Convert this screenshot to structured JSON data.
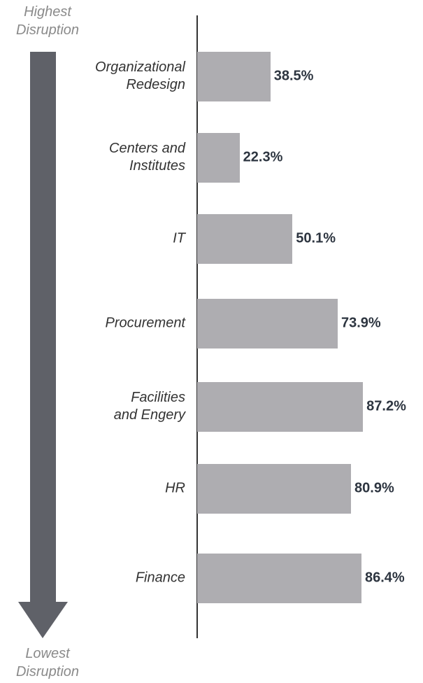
{
  "chart_data": {
    "type": "bar",
    "orientation": "horizontal",
    "annotations": {
      "top": "Highest\nDisruption",
      "bottom": "Lowest\nDisruption"
    },
    "categories": [
      "Organizational\nRedesign",
      "Centers and\nInstitutes",
      "IT",
      "Procurement",
      "Facilities\nand Engery",
      "HR",
      "Finance"
    ],
    "values": [
      38.5,
      22.3,
      50.1,
      73.9,
      87.2,
      80.9,
      86.4
    ],
    "value_labels": [
      "38.5%",
      "22.3%",
      "50.1%",
      "73.9%",
      "87.2%",
      "80.9%",
      "86.4%"
    ],
    "color": "#aeadb1",
    "xlim": [
      0,
      100
    ]
  }
}
